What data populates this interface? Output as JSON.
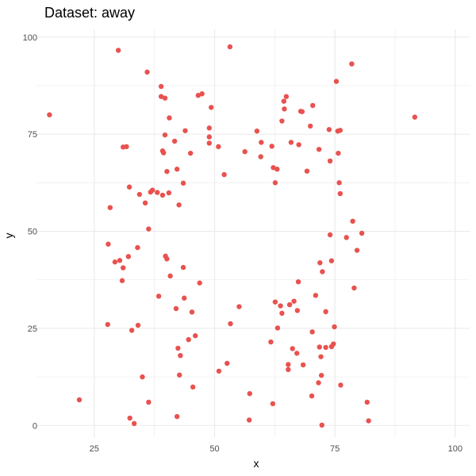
{
  "chart_data": {
    "type": "scatter",
    "title": "Dataset: away",
    "xlabel": "x",
    "ylabel": "y",
    "xlim": [
      13,
      103
    ],
    "ylim": [
      -3,
      102
    ],
    "x_ticks": [
      25,
      50,
      75,
      100
    ],
    "y_ticks": [
      0,
      25,
      50,
      75,
      100
    ],
    "grid": true,
    "point_color": "#e8524f",
    "gridline_color": "#ebebeb",
    "points": [
      [
        15.7,
        80.0
      ],
      [
        21.9,
        6.6
      ],
      [
        27.8,
        26.0
      ],
      [
        27.9,
        46.7
      ],
      [
        28.3,
        56.1
      ],
      [
        29.3,
        42.1
      ],
      [
        30.0,
        96.6
      ],
      [
        30.3,
        42.5
      ],
      [
        30.8,
        37.3
      ],
      [
        31.0,
        40.6
      ],
      [
        31.0,
        71.7
      ],
      [
        31.7,
        71.8
      ],
      [
        32.1,
        43.5
      ],
      [
        32.3,
        61.4
      ],
      [
        32.4,
        1.9
      ],
      [
        32.8,
        24.5
      ],
      [
        33.3,
        0.5
      ],
      [
        34.0,
        45.8
      ],
      [
        34.1,
        25.8
      ],
      [
        34.4,
        59.5
      ],
      [
        35.0,
        12.5
      ],
      [
        35.6,
        57.3
      ],
      [
        36.0,
        91.0
      ],
      [
        36.3,
        6.0
      ],
      [
        36.3,
        50.6
      ],
      [
        36.7,
        60.1
      ],
      [
        37.1,
        60.6
      ],
      [
        38.1,
        60.0
      ],
      [
        38.4,
        33.3
      ],
      [
        38.9,
        87.3
      ],
      [
        38.9,
        84.7
      ],
      [
        39.2,
        70.7
      ],
      [
        39.2,
        59.3
      ],
      [
        39.4,
        70.2
      ],
      [
        39.7,
        84.3
      ],
      [
        39.7,
        74.8
      ],
      [
        39.8,
        43.6
      ],
      [
        40.1,
        65.4
      ],
      [
        40.1,
        42.9
      ],
      [
        40.5,
        59.9
      ],
      [
        40.6,
        79.2
      ],
      [
        40.8,
        38.5
      ],
      [
        41.7,
        73.2
      ],
      [
        42.0,
        30.1
      ],
      [
        42.2,
        2.3
      ],
      [
        42.2,
        66.0
      ],
      [
        42.4,
        19.9
      ],
      [
        42.6,
        56.8
      ],
      [
        42.7,
        13.0
      ],
      [
        42.9,
        18.0
      ],
      [
        43.5,
        62.4
      ],
      [
        43.5,
        40.7
      ],
      [
        43.7,
        32.8
      ],
      [
        43.9,
        75.9
      ],
      [
        44.6,
        22.1
      ],
      [
        45.0,
        70.1
      ],
      [
        45.3,
        29.2
      ],
      [
        45.5,
        9.9
      ],
      [
        46.0,
        23.1
      ],
      [
        46.6,
        85.0
      ],
      [
        46.9,
        36.7
      ],
      [
        47.4,
        85.4
      ],
      [
        48.9,
        76.6
      ],
      [
        48.9,
        74.3
      ],
      [
        48.9,
        72.7
      ],
      [
        49.3,
        81.9
      ],
      [
        50.9,
        14.0
      ],
      [
        50.8,
        71.8
      ],
      [
        52.0,
        64.6
      ],
      [
        52.6,
        16.0
      ],
      [
        53.2,
        97.5
      ],
      [
        53.3,
        26.2
      ],
      [
        55.1,
        30.6
      ],
      [
        56.3,
        70.5
      ],
      [
        57.3,
        8.2
      ],
      [
        57.2,
        1.4
      ],
      [
        58.8,
        75.8
      ],
      [
        59.6,
        69.2
      ],
      [
        59.7,
        72.9
      ],
      [
        61.9,
        71.9
      ],
      [
        61.7,
        21.5
      ],
      [
        62.1,
        5.6
      ],
      [
        62.2,
        66.4
      ],
      [
        62.6,
        31.8
      ],
      [
        62.6,
        62.5
      ],
      [
        63.0,
        66.0
      ],
      [
        63.1,
        25.1
      ],
      [
        63.7,
        30.8
      ],
      [
        64.0,
        28.9
      ],
      [
        64.0,
        78.4
      ],
      [
        64.4,
        83.5
      ],
      [
        64.5,
        81.5
      ],
      [
        64.9,
        84.7
      ],
      [
        65.3,
        14.4
      ],
      [
        65.3,
        15.7
      ],
      [
        65.6,
        31.1
      ],
      [
        65.9,
        72.9
      ],
      [
        66.2,
        19.8
      ],
      [
        66.5,
        32.0
      ],
      [
        67.1,
        18.6
      ],
      [
        67.2,
        29.6
      ],
      [
        67.4,
        37.0
      ],
      [
        67.5,
        72.3
      ],
      [
        67.9,
        80.9
      ],
      [
        68.2,
        80.8
      ],
      [
        68.4,
        15.6
      ],
      [
        69.2,
        65.5
      ],
      [
        69.9,
        77.1
      ],
      [
        70.2,
        7.6
      ],
      [
        70.3,
        24.1
      ],
      [
        70.4,
        82.4
      ],
      [
        71.0,
        33.5
      ],
      [
        71.6,
        11.0
      ],
      [
        71.7,
        71.1
      ],
      [
        71.9,
        41.9
      ],
      [
        71.8,
        20.2
      ],
      [
        72.1,
        17.7
      ],
      [
        72.2,
        12.9
      ],
      [
        72.3,
        0.1
      ],
      [
        72.4,
        39.6
      ],
      [
        73.1,
        29.3
      ],
      [
        73.1,
        20.1
      ],
      [
        73.8,
        76.2
      ],
      [
        74.0,
        49.1
      ],
      [
        74.0,
        68.1
      ],
      [
        74.3,
        20.3
      ],
      [
        74.3,
        42.4
      ],
      [
        74.7,
        21.0
      ],
      [
        74.9,
        25.4
      ],
      [
        75.3,
        88.6
      ],
      [
        75.6,
        75.8
      ],
      [
        75.7,
        70.1
      ],
      [
        75.9,
        62.5
      ],
      [
        76.1,
        59.7
      ],
      [
        76.1,
        76.0
      ],
      [
        76.2,
        10.4
      ],
      [
        77.4,
        48.4
      ],
      [
        78.5,
        93.1
      ],
      [
        78.7,
        52.6
      ],
      [
        79.0,
        35.4
      ],
      [
        79.6,
        45.1
      ],
      [
        80.6,
        49.5
      ],
      [
        81.7,
        6.0
      ],
      [
        82.0,
        1.2
      ],
      [
        91.6,
        79.4
      ]
    ]
  }
}
